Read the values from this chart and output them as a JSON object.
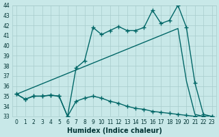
{
  "line1_straight": {
    "x": [
      0,
      19,
      20,
      21,
      22,
      23
    ],
    "y": [
      35.2,
      41.7,
      36.5,
      33.2,
      33.0,
      33.0
    ],
    "color": "#006666",
    "marker": "",
    "markersize": 0,
    "linewidth": 1.0
  },
  "line2_zigzag": {
    "x": [
      0,
      1,
      2,
      3,
      4,
      5,
      6,
      7,
      8,
      9,
      10,
      11,
      12,
      13,
      14,
      15,
      16,
      17,
      18,
      19,
      20,
      21,
      22,
      23
    ],
    "y": [
      35.2,
      34.7,
      35.0,
      35.0,
      35.1,
      35.0,
      33.0,
      37.8,
      38.5,
      41.8,
      41.1,
      41.5,
      41.9,
      41.5,
      41.5,
      41.8,
      43.5,
      42.2,
      42.5,
      44.0,
      41.8,
      36.3,
      33.2,
      33.0
    ],
    "color": "#006666",
    "marker": "+",
    "markersize": 4,
    "linewidth": 1.0
  },
  "line3_flat": {
    "x": [
      0,
      1,
      2,
      3,
      4,
      5,
      6,
      7,
      8,
      9,
      10,
      11,
      12,
      13,
      14,
      15,
      16,
      17,
      18,
      19,
      20,
      21,
      22,
      23
    ],
    "y": [
      35.2,
      34.7,
      35.0,
      35.0,
      35.1,
      35.0,
      33.0,
      34.5,
      34.8,
      35.0,
      34.8,
      34.5,
      34.3,
      34.0,
      33.8,
      33.7,
      33.5,
      33.4,
      33.3,
      33.2,
      33.1,
      33.0,
      33.0,
      33.0
    ],
    "color": "#006666",
    "marker": "+",
    "markersize": 4,
    "linewidth": 1.0
  },
  "xlabel": "Humidex (Indice chaleur)",
  "xlim": [
    -0.5,
    23.5
  ],
  "ylim": [
    33,
    44
  ],
  "yticks": [
    33,
    34,
    35,
    36,
    37,
    38,
    39,
    40,
    41,
    42,
    43,
    44
  ],
  "xticks": [
    0,
    1,
    2,
    3,
    4,
    5,
    6,
    7,
    8,
    9,
    10,
    11,
    12,
    13,
    14,
    15,
    16,
    17,
    18,
    19,
    20,
    21,
    22,
    23
  ],
  "background_color": "#c8e8e8",
  "grid_color": "#a8cccc",
  "line_color": "#006666",
  "font_color": "#003333",
  "xlabel_fontsize": 7,
  "tick_fontsize": 5.5
}
